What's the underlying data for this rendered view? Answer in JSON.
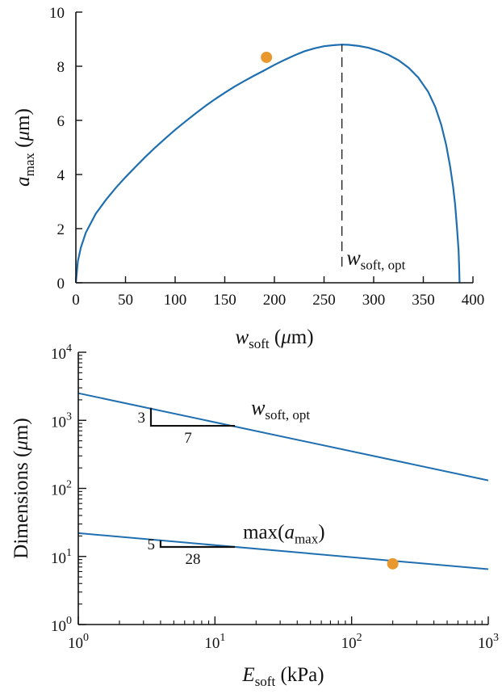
{
  "chart_data": [
    {
      "type": "line",
      "xlabel": "w_soft (μm)",
      "ylabel": "a_max (μm)",
      "xlim": [
        0,
        400
      ],
      "ylim": [
        0,
        10
      ],
      "x_ticks": [
        0,
        50,
        100,
        150,
        200,
        250,
        300,
        350,
        400
      ],
      "y_ticks": [
        0,
        2,
        4,
        6,
        8,
        10
      ],
      "x_tick_labels": [
        "0",
        "50",
        "100",
        "150",
        "200",
        "250",
        "300",
        "350",
        "400"
      ],
      "y_tick_labels": [
        "0",
        "2",
        "4",
        "6",
        "8",
        "10"
      ],
      "series": [
        {
          "color": "#1f6fb0",
          "x": [
            0,
            2,
            5,
            10,
            20,
            30,
            40,
            50,
            60,
            70,
            80,
            90,
            100,
            110,
            120,
            130,
            140,
            150,
            160,
            170,
            180,
            190,
            200,
            210,
            220,
            230,
            240,
            250,
            260,
            268,
            275,
            285,
            295,
            305,
            315,
            325,
            335,
            345,
            355,
            362,
            368,
            373,
            377,
            380,
            382,
            384,
            385.5,
            386.2,
            386.5
          ],
          "y": [
            0,
            0.8,
            1.3,
            1.85,
            2.55,
            3.05,
            3.5,
            3.9,
            4.28,
            4.65,
            5.0,
            5.33,
            5.65,
            5.95,
            6.24,
            6.52,
            6.78,
            7.02,
            7.25,
            7.46,
            7.66,
            7.85,
            8.05,
            8.23,
            8.4,
            8.55,
            8.66,
            8.74,
            8.78,
            8.8,
            8.79,
            8.75,
            8.68,
            8.57,
            8.42,
            8.22,
            7.95,
            7.58,
            7.05,
            6.5,
            5.85,
            5.1,
            4.3,
            3.55,
            2.9,
            2.0,
            1.2,
            0.5,
            0
          ]
        }
      ],
      "marker": {
        "x": 192,
        "y": 8.33,
        "color": "#e8982e"
      },
      "vline": {
        "x": 268,
        "y_from": 0.6,
        "y_to": 8.8
      },
      "annotation": {
        "base": "w",
        "sub": "soft, opt",
        "x": 271,
        "y": 0.5
      }
    },
    {
      "type": "line",
      "xlabel": "E_soft (kPa)",
      "ylabel": "Dimensions (μm)",
      "xscale": "log",
      "yscale": "log",
      "xlim": [
        1,
        1000
      ],
      "ylim": [
        1,
        10000
      ],
      "x_ticks": [
        1,
        10,
        100,
        1000
      ],
      "y_ticks": [
        1,
        10,
        100,
        1000,
        10000
      ],
      "x_tick_labels": [
        {
          "base": "10",
          "exp": "0"
        },
        {
          "base": "10",
          "exp": "1"
        },
        {
          "base": "10",
          "exp": "2"
        },
        {
          "base": "10",
          "exp": "3"
        }
      ],
      "y_tick_labels": [
        {
          "base": "10",
          "exp": "0"
        },
        {
          "base": "10",
          "exp": "1"
        },
        {
          "base": "10",
          "exp": "2"
        },
        {
          "base": "10",
          "exp": "3"
        },
        {
          "base": "10",
          "exp": "4"
        }
      ],
      "series": [
        {
          "label": {
            "base": "w",
            "sub": "soft, opt"
          },
          "color": "#1f6fb0",
          "x": [
            1,
            1000
          ],
          "y": [
            2500,
            131
          ]
        },
        {
          "label": {
            "pre": "max(",
            "base": "a",
            "sub": "max",
            "post": ")"
          },
          "color": "#1f6fb0",
          "x": [
            1,
            1000
          ],
          "y": [
            22,
            6.5
          ]
        }
      ],
      "marker": {
        "x": 200,
        "y": 7.8,
        "color": "#e8982e"
      },
      "slope_triangles": [
        {
          "rise": "3",
          "run": "7",
          "x0": 3.4,
          "x1": 14,
          "y_top": 1530,
          "y_bottom": 830
        },
        {
          "rise": "5",
          "run": "28",
          "x0": 4.0,
          "x1": 14,
          "y_top": 17.3,
          "y_bottom": 13.8
        }
      ]
    }
  ]
}
